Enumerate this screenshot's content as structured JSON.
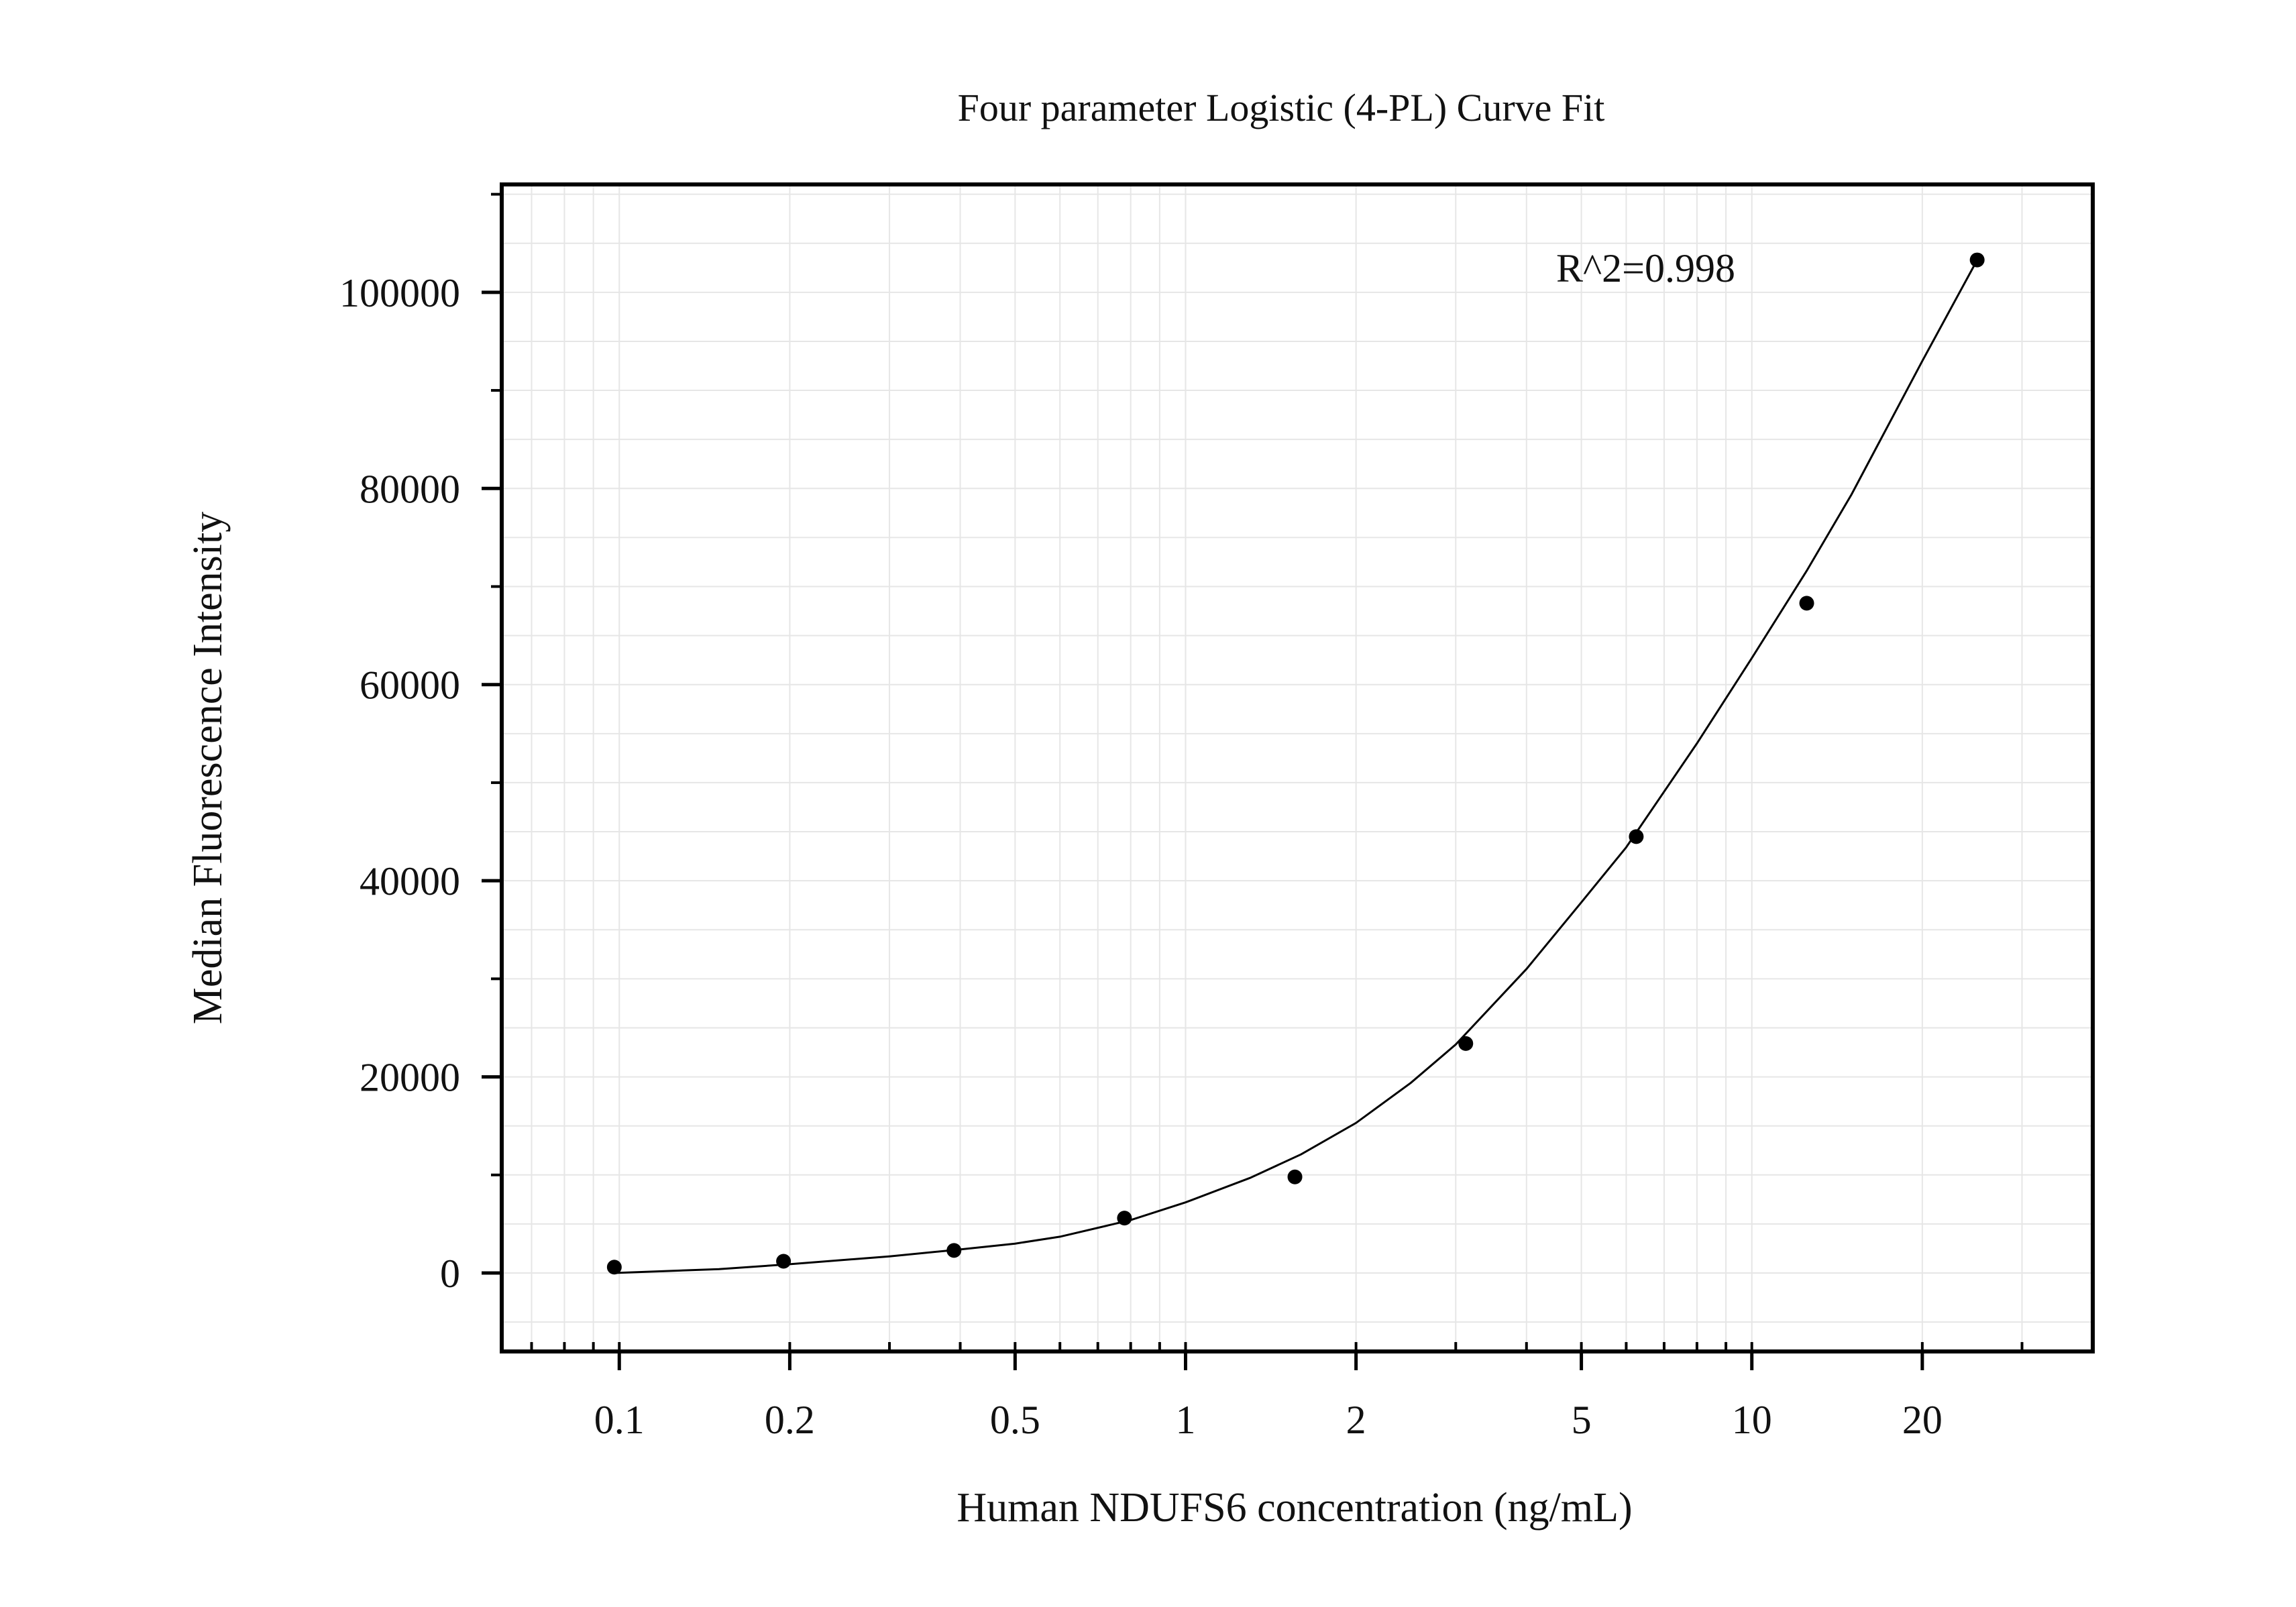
{
  "colors": {
    "background": "#ffffff",
    "axis": "#000000",
    "grid": "#e6e6e6",
    "curve": "#000000",
    "points": "#000000"
  },
  "chart_data": {
    "type": "scatter",
    "title": "Four parameter Logistic (4-PL) Curve Fit",
    "xlabel": "Human NDUFS6 concentration (ng/mL)",
    "ylabel": "Median Fluorescence Intensity",
    "x_scale": "log",
    "xlim": [
      0.062,
      40
    ],
    "ylim": [
      -8000,
      111000
    ],
    "x_ticks": [
      0.1,
      0.2,
      0.5,
      1,
      2,
      5,
      10,
      20
    ],
    "x_tick_labels": [
      "0.1",
      "0.2",
      "0.5",
      "1",
      "2",
      "5",
      "10",
      "20"
    ],
    "y_ticks": [
      0,
      20000,
      40000,
      60000,
      80000,
      100000
    ],
    "y_tick_labels": [
      "0",
      "20000",
      "40000",
      "60000",
      "80000",
      "100000"
    ],
    "grid": true,
    "annotation": "R^2=0.998",
    "series": [
      {
        "type": "scatter",
        "x": [
          0.098,
          0.195,
          0.39,
          0.78,
          1.56,
          3.125,
          6.25,
          12.5,
          25
        ],
        "y": [
          600,
          1200,
          2300,
          5600,
          9800,
          23400,
          44500,
          68300,
          103300
        ]
      },
      {
        "type": "line",
        "x": [
          0.098,
          0.15,
          0.2,
          0.3,
          0.4,
          0.5,
          0.6,
          0.8,
          1,
          1.3,
          1.6,
          2,
          2.5,
          3,
          4,
          5,
          6,
          8,
          10,
          12.5,
          15,
          20,
          25
        ],
        "y": [
          0,
          400,
          900,
          1700,
          2400,
          3000,
          3700,
          5400,
          7200,
          9700,
          12100,
          15300,
          19400,
          23300,
          31000,
          37800,
          43400,
          54000,
          62700,
          71600,
          79400,
          93000,
          103300
        ]
      }
    ]
  }
}
